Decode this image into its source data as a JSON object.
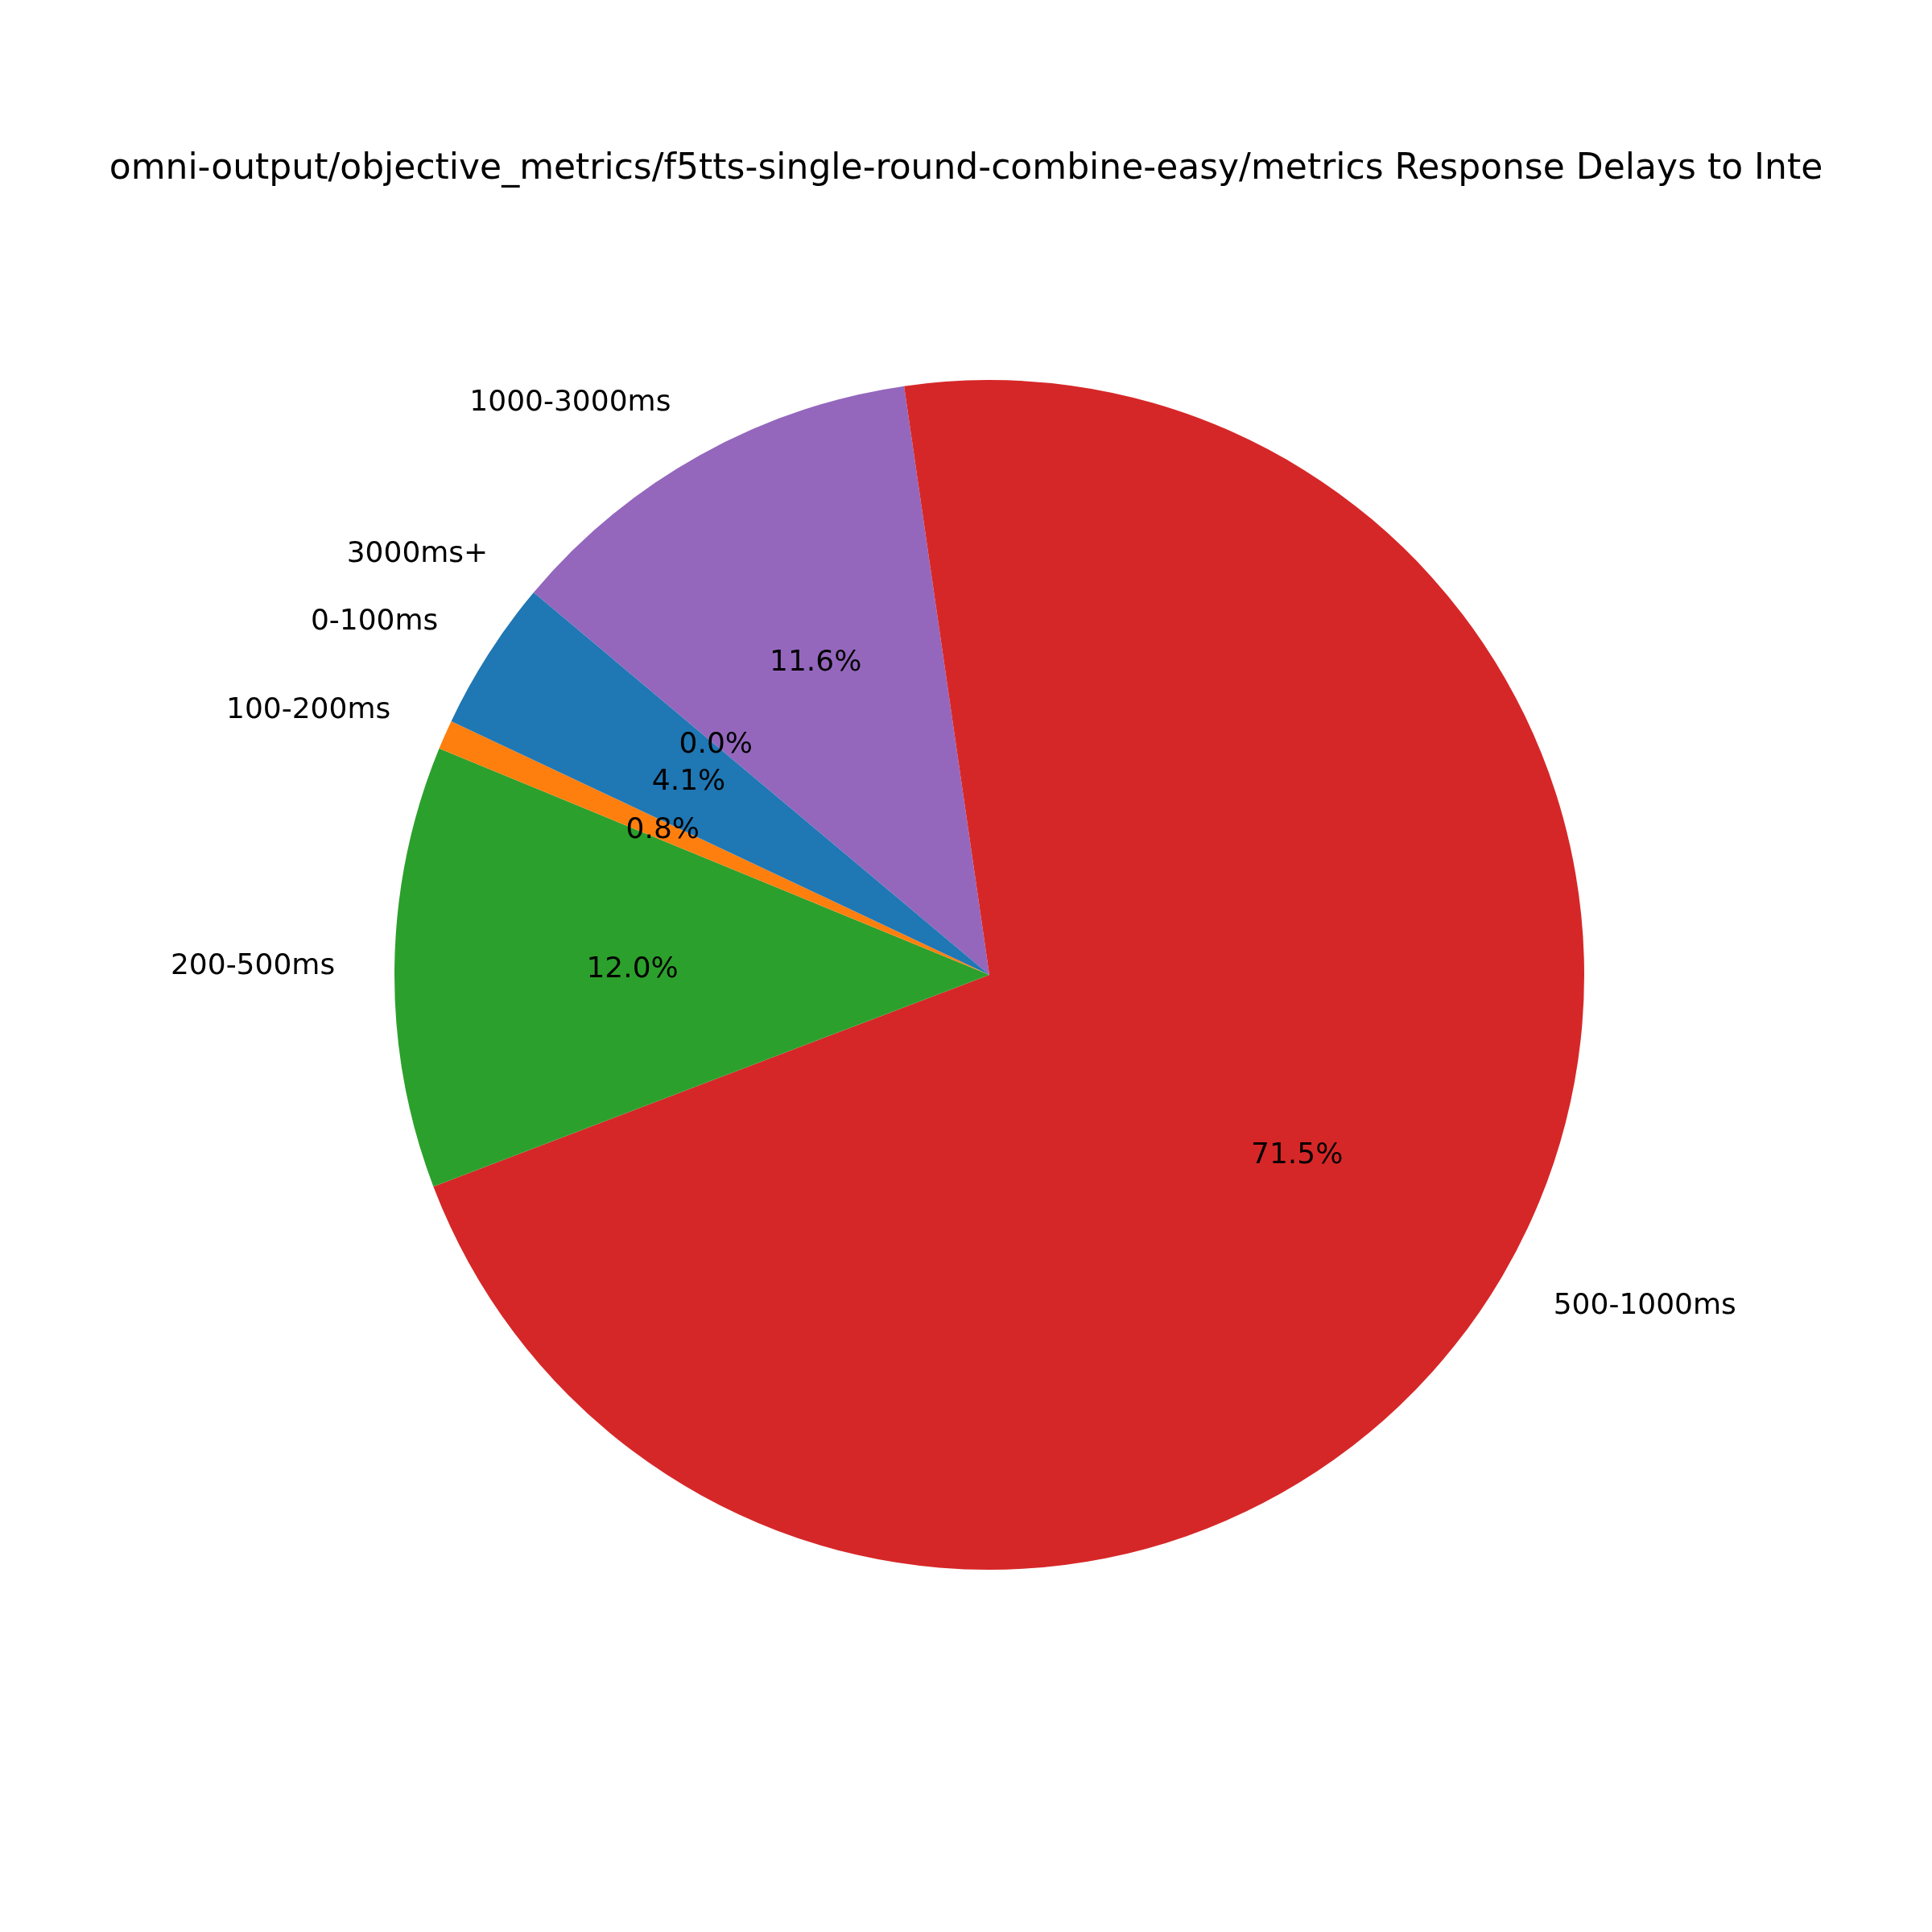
{
  "chart_data": {
    "type": "pie",
    "title": "omni-output/objective_metrics/f5tts-single-round-combine-easy/metrics Response Delays to Inte",
    "categories": [
      "3000ms+",
      "1000-3000ms",
      "500-1000ms",
      "200-500ms",
      "100-200ms",
      "0-100ms"
    ],
    "values": [
      0.0,
      11.6,
      71.5,
      12.0,
      0.8,
      4.1
    ],
    "value_labels": [
      "0.0%",
      "11.6%",
      "71.5%",
      "12.0%",
      "0.8%",
      "4.1%"
    ],
    "colors": [
      "#8c564b",
      "#9467bd",
      "#d62728",
      "#2ca02c",
      "#ff7f0e",
      "#1f77b4"
    ],
    "legend": false
  }
}
